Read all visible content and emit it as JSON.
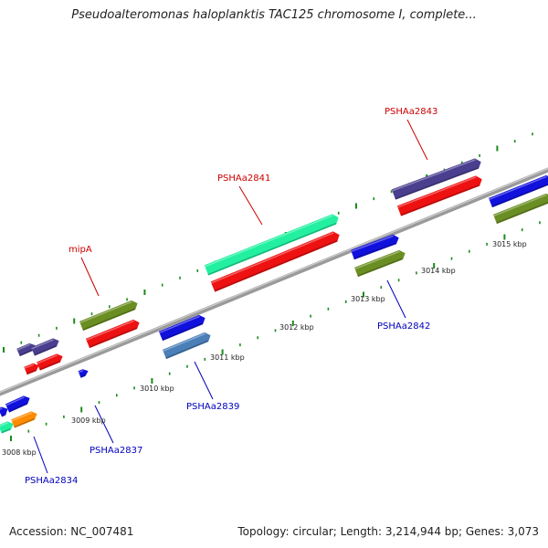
{
  "title": "Pseudoalteromonas haloplanktis TAC125 chromosome I, complete...",
  "footer": {
    "accession": "Accession: NC_007481",
    "summary": "Topology: circular; Length: 3,214,944 bp; Genes: 3,073"
  },
  "colors": {
    "backbone": "#8c8c8c",
    "tick": "#1a8a1a",
    "label_top": "#cc0000",
    "label_bottom": "#0000bb",
    "purple": "#4a3f8f",
    "red": "#ee1111",
    "green": "#6b8e23",
    "mint": "#22f0a0",
    "blue": "#1111dd",
    "steel": "#4a7fb8",
    "orange": "#ff8c00"
  },
  "scale_labels": [
    "3008 kbp",
    "3009 kbp",
    "3010 kbp",
    "3011 kbp",
    "3012 kbp",
    "3013 kbp",
    "3014 kbp",
    "3015 kbp"
  ],
  "gene_labels_top": [
    "mipA",
    "PSHAa2841",
    "PSHAa2843"
  ],
  "gene_labels_bottom": [
    "PSHAa2834",
    "PSHAa2837",
    "PSHAa2839",
    "PSHAa2842"
  ]
}
